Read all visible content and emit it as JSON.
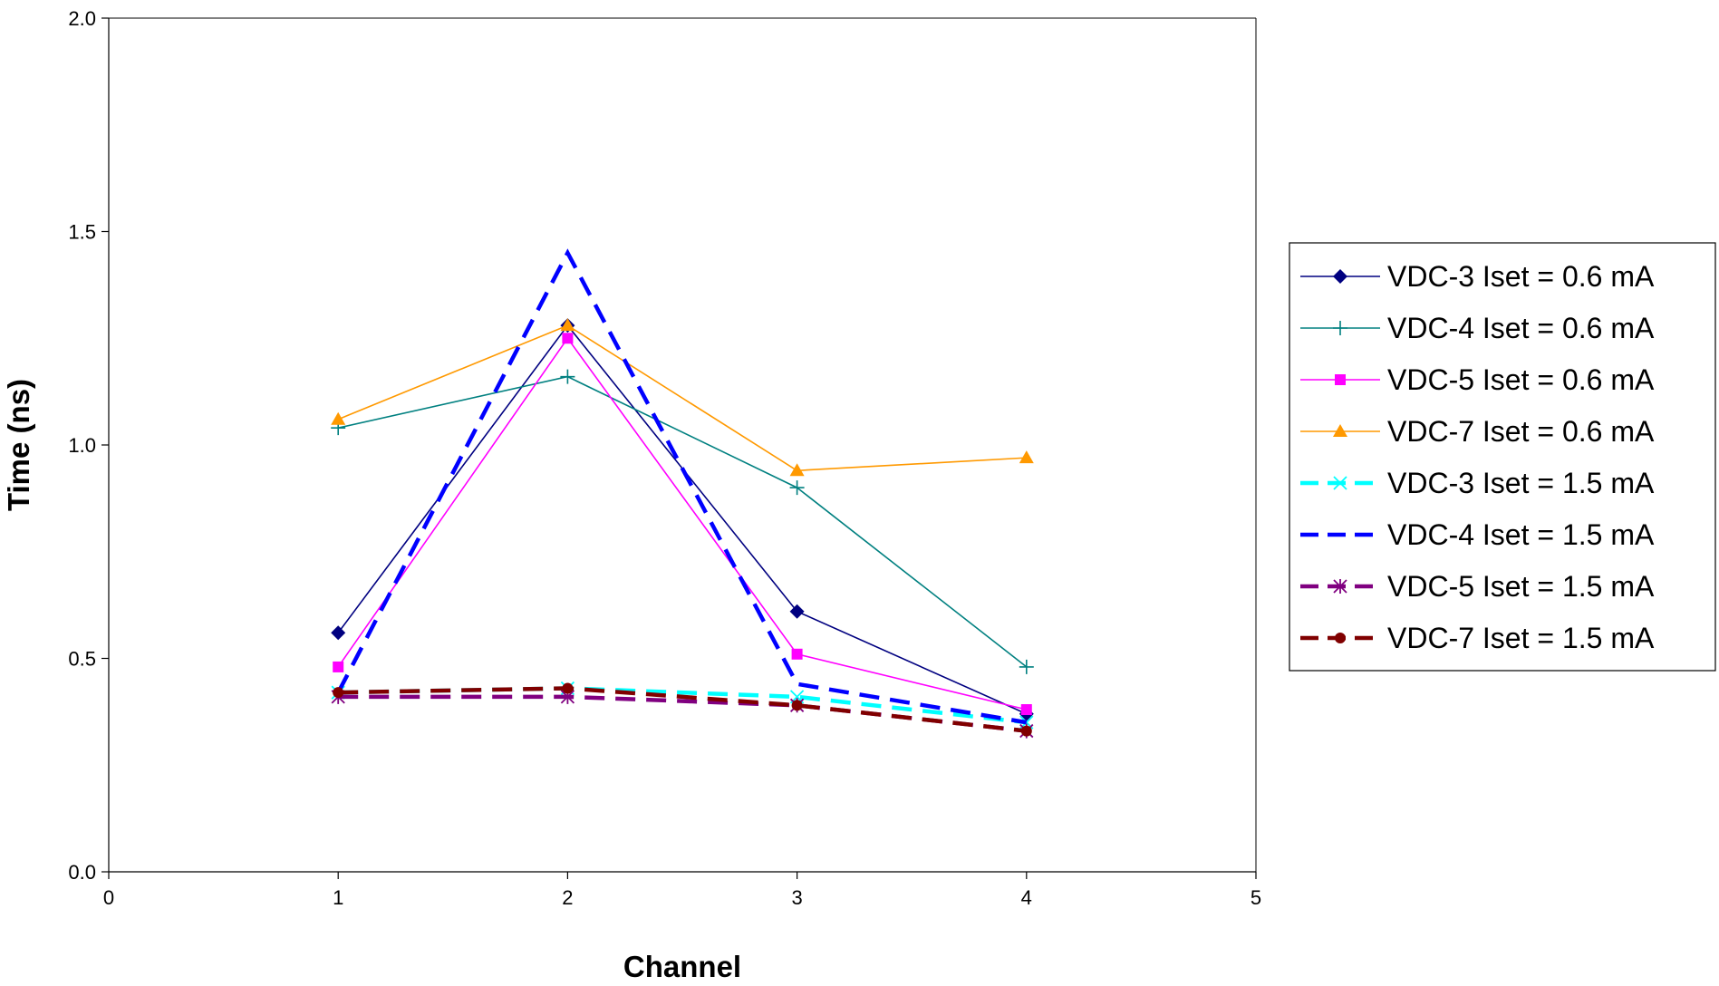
{
  "chart_data": {
    "type": "line",
    "xlabel": "Channel",
    "ylabel": "Time (ns)",
    "xlim": [
      0,
      5
    ],
    "ylim": [
      0,
      2
    ],
    "xticks": [
      "0",
      "1",
      "2",
      "3",
      "4",
      "5"
    ],
    "yticks": [
      "0.0",
      "0.5",
      "1.0",
      "1.5",
      "2.0"
    ],
    "grid": false,
    "legend_position": "right",
    "x": [
      1,
      2,
      3,
      4
    ],
    "series": [
      {
        "name": "VDC-3 Iset = 0.6 mA",
        "values": [
          0.56,
          1.28,
          0.61,
          0.37
        ],
        "color": "#000080",
        "marker": "diamond",
        "dashed": false
      },
      {
        "name": "VDC-4 Iset = 0.6 mA",
        "values": [
          1.04,
          1.16,
          0.9,
          0.48
        ],
        "color": "#008080",
        "marker": "plus",
        "dashed": false
      },
      {
        "name": "VDC-5 Iset = 0.6 mA",
        "values": [
          0.48,
          1.25,
          0.51,
          0.38
        ],
        "color": "#FF00FF",
        "marker": "square",
        "dashed": false
      },
      {
        "name": "VDC-7 Iset = 0.6 mA",
        "values": [
          1.06,
          1.28,
          0.94,
          0.97
        ],
        "color": "#FF9900",
        "marker": "triangle",
        "dashed": false
      },
      {
        "name": "VDC-3 Iset = 1.5 mA",
        "values": [
          0.42,
          0.43,
          0.41,
          0.35
        ],
        "color": "#00FFFF",
        "marker": "x",
        "dashed": true
      },
      {
        "name": "VDC-4 Iset = 1.5 mA",
        "values": [
          0.42,
          1.45,
          0.44,
          0.35
        ],
        "color": "#0000FF",
        "marker": "none",
        "dashed": true
      },
      {
        "name": "VDC-5 Iset = 1.5 mA",
        "values": [
          0.41,
          0.41,
          0.39,
          0.33
        ],
        "color": "#800080",
        "marker": "star",
        "dashed": true
      },
      {
        "name": "VDC-7 Iset = 1.5 mA",
        "values": [
          0.42,
          0.43,
          0.39,
          0.33
        ],
        "color": "#800000",
        "marker": "circle",
        "dashed": true
      }
    ]
  }
}
